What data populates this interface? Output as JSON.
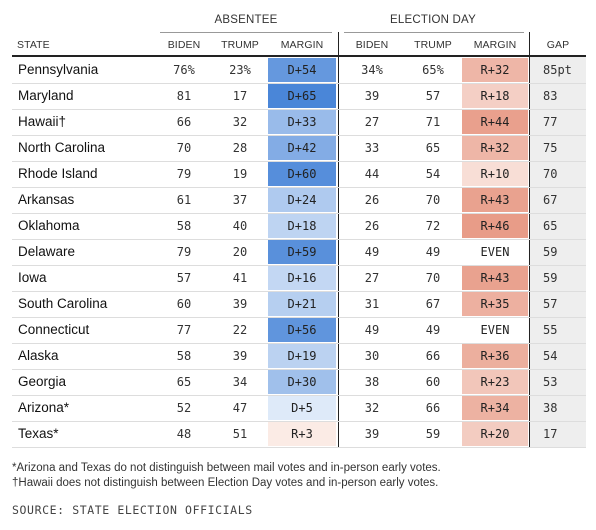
{
  "chart_data": {
    "type": "table",
    "group_headers": {
      "absentee": "ABSENTEE",
      "election_day": "ELECTION DAY"
    },
    "columns": {
      "state": "STATE",
      "biden": "BIDEN",
      "trump": "TRUMP",
      "margin": "MARGIN",
      "gap": "GAP"
    },
    "rows": [
      {
        "state": "Pennsylvania",
        "abs_biden": "76%",
        "abs_trump": "23%",
        "abs_margin": "D+54",
        "abs_margin_value": 54,
        "ed_biden": "34%",
        "ed_trump": "65%",
        "ed_margin": "R+32",
        "ed_margin_value": -32,
        "gap": "85pt"
      },
      {
        "state": "Maryland",
        "abs_biden": "81",
        "abs_trump": "17",
        "abs_margin": "D+65",
        "abs_margin_value": 65,
        "ed_biden": "39",
        "ed_trump": "57",
        "ed_margin": "R+18",
        "ed_margin_value": -18,
        "gap": "83"
      },
      {
        "state": "Hawaii†",
        "abs_biden": "66",
        "abs_trump": "32",
        "abs_margin": "D+33",
        "abs_margin_value": 33,
        "ed_biden": "27",
        "ed_trump": "71",
        "ed_margin": "R+44",
        "ed_margin_value": -44,
        "gap": "77"
      },
      {
        "state": "North Carolina",
        "abs_biden": "70",
        "abs_trump": "28",
        "abs_margin": "D+42",
        "abs_margin_value": 42,
        "ed_biden": "33",
        "ed_trump": "65",
        "ed_margin": "R+32",
        "ed_margin_value": -32,
        "gap": "75"
      },
      {
        "state": "Rhode Island",
        "abs_biden": "79",
        "abs_trump": "19",
        "abs_margin": "D+60",
        "abs_margin_value": 60,
        "ed_biden": "44",
        "ed_trump": "54",
        "ed_margin": "R+10",
        "ed_margin_value": -10,
        "gap": "70"
      },
      {
        "state": "Arkansas",
        "abs_biden": "61",
        "abs_trump": "37",
        "abs_margin": "D+24",
        "abs_margin_value": 24,
        "ed_biden": "26",
        "ed_trump": "70",
        "ed_margin": "R+43",
        "ed_margin_value": -43,
        "gap": "67"
      },
      {
        "state": "Oklahoma",
        "abs_biden": "58",
        "abs_trump": "40",
        "abs_margin": "D+18",
        "abs_margin_value": 18,
        "ed_biden": "26",
        "ed_trump": "72",
        "ed_margin": "R+46",
        "ed_margin_value": -46,
        "gap": "65"
      },
      {
        "state": "Delaware",
        "abs_biden": "79",
        "abs_trump": "20",
        "abs_margin": "D+59",
        "abs_margin_value": 59,
        "ed_biden": "49",
        "ed_trump": "49",
        "ed_margin": "EVEN",
        "ed_margin_value": 0,
        "gap": "59"
      },
      {
        "state": "Iowa",
        "abs_biden": "57",
        "abs_trump": "41",
        "abs_margin": "D+16",
        "abs_margin_value": 16,
        "ed_biden": "27",
        "ed_trump": "70",
        "ed_margin": "R+43",
        "ed_margin_value": -43,
        "gap": "59"
      },
      {
        "state": "South Carolina",
        "abs_biden": "60",
        "abs_trump": "39",
        "abs_margin": "D+21",
        "abs_margin_value": 21,
        "ed_biden": "31",
        "ed_trump": "67",
        "ed_margin": "R+35",
        "ed_margin_value": -35,
        "gap": "57"
      },
      {
        "state": "Connecticut",
        "abs_biden": "77",
        "abs_trump": "22",
        "abs_margin": "D+56",
        "abs_margin_value": 56,
        "ed_biden": "49",
        "ed_trump": "49",
        "ed_margin": "EVEN",
        "ed_margin_value": 0,
        "gap": "55"
      },
      {
        "state": "Alaska",
        "abs_biden": "58",
        "abs_trump": "39",
        "abs_margin": "D+19",
        "abs_margin_value": 19,
        "ed_biden": "30",
        "ed_trump": "66",
        "ed_margin": "R+36",
        "ed_margin_value": -36,
        "gap": "54"
      },
      {
        "state": "Georgia",
        "abs_biden": "65",
        "abs_trump": "34",
        "abs_margin": "D+30",
        "abs_margin_value": 30,
        "ed_biden": "38",
        "ed_trump": "60",
        "ed_margin": "R+23",
        "ed_margin_value": -23,
        "gap": "53"
      },
      {
        "state": "Arizona*",
        "abs_biden": "52",
        "abs_trump": "47",
        "abs_margin": "D+5",
        "abs_margin_value": 5,
        "ed_biden": "32",
        "ed_trump": "66",
        "ed_margin": "R+34",
        "ed_margin_value": -34,
        "gap": "38"
      },
      {
        "state": "Texas*",
        "abs_biden": "48",
        "abs_trump": "51",
        "abs_margin": "R+3",
        "abs_margin_value": -3,
        "ed_biden": "39",
        "ed_trump": "59",
        "ed_margin": "R+20",
        "ed_margin_value": -20,
        "gap": "17"
      }
    ],
    "colors": {
      "dem": "#4a86d8",
      "rep": "#e07a5f",
      "gap_bg": "#eeeeee",
      "rule": "#222222"
    }
  },
  "notes": [
    "*Arizona and Texas do not distinguish between mail votes and in-person early votes.",
    "†Hawaii does not distinguish between Election Day votes and in-person early votes."
  ],
  "source": "SOURCE: STATE ELECTION OFFICIALS"
}
